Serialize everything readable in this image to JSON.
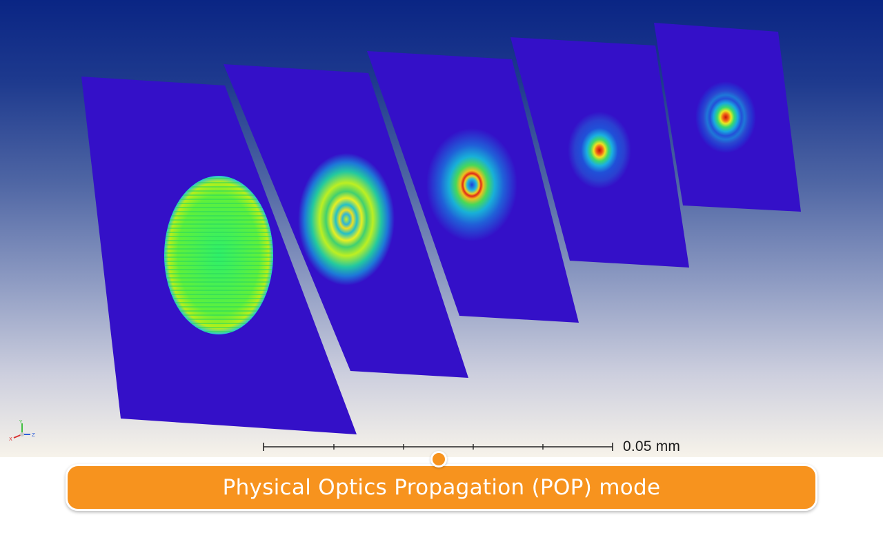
{
  "scale_bar": {
    "label": "0.05 mm"
  },
  "caption": {
    "text": "Physical Optics Propagation (POP) mode"
  },
  "axis_triad": {
    "x": "X",
    "y": "Y",
    "z": "Z"
  },
  "beam_planes": [
    {
      "pattern": "uniform-elliptical-aperture"
    },
    {
      "pattern": "ring-diffraction-large"
    },
    {
      "pattern": "ring-with-hot-rim"
    },
    {
      "pattern": "focused-spot"
    },
    {
      "pattern": "focused-spot-with-rings"
    }
  ],
  "colors": {
    "plane_background": "#3410c8",
    "caption_background": "#f7931e",
    "caption_text": "#ffffff",
    "scale_text": "#1a1a1a"
  }
}
